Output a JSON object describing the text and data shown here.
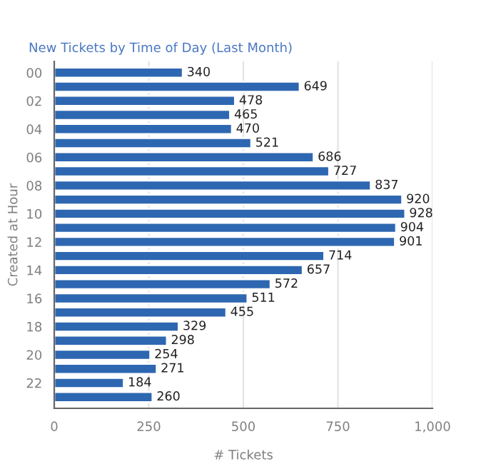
{
  "chart_data": {
    "type": "bar",
    "orientation": "horizontal",
    "title": "New Tickets by Time of Day (Last Month)",
    "xlabel": "# Tickets",
    "ylabel": "Created at Hour",
    "categories": [
      "00",
      null,
      "02",
      null,
      "04",
      null,
      "06",
      null,
      "08",
      null,
      "10",
      null,
      "12",
      null,
      "14",
      null,
      "16",
      null,
      "18",
      null,
      "20",
      null,
      "22",
      null
    ],
    "values": [
      340,
      649,
      478,
      465,
      470,
      521,
      686,
      727,
      837,
      920,
      928,
      904,
      901,
      714,
      657,
      572,
      511,
      455,
      329,
      298,
      254,
      271,
      184,
      260
    ],
    "color": "#2e67b1",
    "xlim": [
      0,
      1000
    ],
    "xticks": [
      0,
      250,
      500,
      750,
      {
        "value": 1000,
        "label": "1,000"
      }
    ],
    "grid": "x",
    "data_labels": true,
    "legend": false
  }
}
